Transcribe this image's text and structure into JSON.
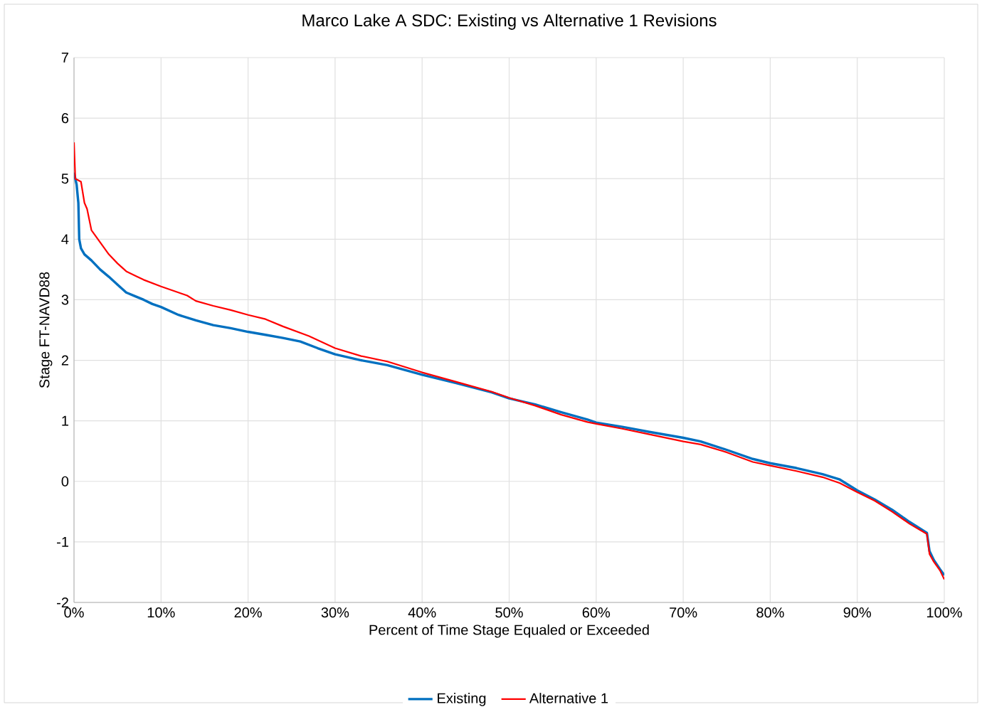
{
  "chart_data": {
    "type": "line",
    "title": "Marco Lake A SDC: Existing vs Alternative 1 Revisions",
    "xlabel": "Percent of Time Stage Equaled or Exceeded",
    "ylabel": "Stage FT-NAVD88",
    "xlim": [
      0,
      100
    ],
    "ylim": [
      -2,
      7
    ],
    "xticks": [
      {
        "value": 0,
        "label": "0%"
      },
      {
        "value": 10,
        "label": "10%"
      },
      {
        "value": 20,
        "label": "20%"
      },
      {
        "value": 30,
        "label": "30%"
      },
      {
        "value": 40,
        "label": "40%"
      },
      {
        "value": 50,
        "label": "50%"
      },
      {
        "value": 60,
        "label": "60%"
      },
      {
        "value": 70,
        "label": "70%"
      },
      {
        "value": 80,
        "label": "80%"
      },
      {
        "value": 90,
        "label": "90%"
      },
      {
        "value": 100,
        "label": "100%"
      }
    ],
    "yticks": [
      -2,
      -1,
      0,
      1,
      2,
      3,
      4,
      5,
      6,
      7
    ],
    "grid": true,
    "legend": "bottom",
    "marker": "none",
    "line_style": "solid",
    "series": [
      {
        "name": "Existing",
        "color": "#0070c0",
        "x": [
          0,
          0.3,
          0.5,
          0.6,
          0.8,
          1.2,
          2,
          3,
          4,
          5,
          6,
          7,
          8,
          9,
          10,
          12,
          14,
          16,
          18,
          20,
          22,
          24,
          26,
          28,
          30,
          33,
          36,
          40,
          44,
          48,
          50,
          53,
          56,
          59,
          60,
          63,
          66,
          70,
          72,
          75,
          78,
          80,
          83,
          86,
          88,
          90,
          92,
          94,
          96,
          98,
          98.3,
          98.8,
          99.5,
          100
        ],
        "values": [
          5.1,
          4.9,
          4.6,
          4.0,
          3.85,
          3.75,
          3.65,
          3.5,
          3.38,
          3.25,
          3.12,
          3.06,
          3.0,
          2.93,
          2.88,
          2.75,
          2.66,
          2.58,
          2.53,
          2.47,
          2.42,
          2.37,
          2.31,
          2.2,
          2.1,
          2.0,
          1.92,
          1.76,
          1.62,
          1.47,
          1.37,
          1.27,
          1.14,
          1.02,
          0.97,
          0.9,
          0.82,
          0.72,
          0.66,
          0.52,
          0.37,
          0.3,
          0.22,
          0.12,
          0.03,
          -0.15,
          -0.3,
          -0.47,
          -0.67,
          -0.85,
          -1.15,
          -1.3,
          -1.45,
          -1.55
        ]
      },
      {
        "name": "Alternative 1",
        "color": "#ff0000",
        "x": [
          0,
          0.15,
          0.8,
          1.2,
          1.5,
          2,
          3,
          4,
          5,
          6,
          7,
          8,
          10,
          12,
          13,
          14,
          16,
          18,
          20,
          22,
          24,
          27,
          30,
          33,
          36,
          40,
          44,
          48,
          50,
          53,
          56,
          59,
          60,
          63,
          66,
          70,
          72,
          75,
          78,
          80,
          83,
          86,
          88,
          90,
          92,
          94,
          96,
          98,
          98.3,
          98.8,
          99.5,
          100
        ],
        "values": [
          5.6,
          5.0,
          4.95,
          4.6,
          4.5,
          4.15,
          3.95,
          3.75,
          3.6,
          3.47,
          3.4,
          3.33,
          3.22,
          3.12,
          3.07,
          2.98,
          2.9,
          2.83,
          2.75,
          2.68,
          2.56,
          2.4,
          2.2,
          2.07,
          1.98,
          1.8,
          1.64,
          1.48,
          1.38,
          1.25,
          1.1,
          0.98,
          0.95,
          0.87,
          0.78,
          0.66,
          0.61,
          0.48,
          0.32,
          0.26,
          0.17,
          0.07,
          -0.03,
          -0.18,
          -0.32,
          -0.5,
          -0.7,
          -0.87,
          -1.2,
          -1.33,
          -1.47,
          -1.62
        ]
      }
    ]
  }
}
